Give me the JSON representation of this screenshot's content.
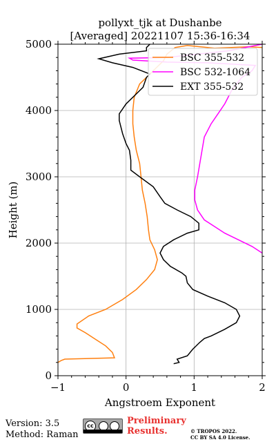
{
  "chart_data": {
    "type": "line",
    "title_line1": "pollyxt_tjk at Dushanbe",
    "title_line2": "[Averaged] 20221107 15:36-16:34",
    "xlabel": "Angstroem Exponent",
    "ylabel": "Height (m)",
    "xlim": [
      -1,
      2
    ],
    "ylim": [
      0,
      5000
    ],
    "xticks": [
      -1,
      0,
      1,
      2
    ],
    "xtick_labels": [
      "−1",
      "0",
      "1",
      "2"
    ],
    "yticks": [
      0,
      1000,
      2000,
      3000,
      4000,
      5000
    ],
    "ytick_labels": [
      "0",
      "1000",
      "2000",
      "3000",
      "4000",
      "5000"
    ],
    "grid": true,
    "legend_position": "top-right",
    "series": [
      {
        "name": "BSC 355-532",
        "color": "#ff7f0e",
        "points": [
          [
            -1.0,
            200
          ],
          [
            -0.95,
            230
          ],
          [
            -0.9,
            250
          ],
          [
            -0.17,
            270
          ],
          [
            -0.2,
            350
          ],
          [
            -0.3,
            450
          ],
          [
            -0.45,
            550
          ],
          [
            -0.6,
            650
          ],
          [
            -0.72,
            720
          ],
          [
            -0.72,
            780
          ],
          [
            -0.55,
            900
          ],
          [
            -0.3,
            1000
          ],
          [
            -0.05,
            1150
          ],
          [
            0.15,
            1300
          ],
          [
            0.3,
            1450
          ],
          [
            0.42,
            1600
          ],
          [
            0.46,
            1750
          ],
          [
            0.42,
            1900
          ],
          [
            0.35,
            2050
          ],
          [
            0.33,
            2200
          ],
          [
            0.31,
            2400
          ],
          [
            0.28,
            2600
          ],
          [
            0.24,
            2800
          ],
          [
            0.22,
            3000
          ],
          [
            0.2,
            3200
          ],
          [
            0.15,
            3400
          ],
          [
            0.12,
            3600
          ],
          [
            0.1,
            3800
          ],
          [
            0.1,
            4000
          ],
          [
            0.12,
            4200
          ],
          [
            0.2,
            4400
          ],
          [
            0.3,
            4500
          ],
          [
            0.4,
            4600
          ],
          [
            0.55,
            4750
          ],
          [
            0.6,
            4850
          ],
          [
            0.72,
            4950
          ],
          [
            0.9,
            4980
          ],
          [
            1.3,
            4940
          ],
          [
            1.8,
            4960
          ],
          [
            2.0,
            4950
          ]
        ]
      },
      {
        "name": "BSC 532-1064",
        "color": "#ff00ff",
        "points": [
          [
            2.0,
            1850
          ],
          [
            1.85,
            1950
          ],
          [
            1.65,
            2050
          ],
          [
            1.45,
            2150
          ],
          [
            1.3,
            2250
          ],
          [
            1.15,
            2350
          ],
          [
            1.05,
            2500
          ],
          [
            1.01,
            2650
          ],
          [
            1.01,
            2800
          ],
          [
            1.05,
            3000
          ],
          [
            1.1,
            3300
          ],
          [
            1.15,
            3600
          ],
          [
            1.25,
            3800
          ],
          [
            1.35,
            3950
          ],
          [
            1.45,
            4100
          ],
          [
            1.55,
            4300
          ],
          [
            1.7,
            4500
          ],
          [
            1.85,
            4600
          ],
          [
            1.9,
            4680
          ],
          [
            1.2,
            4720
          ],
          [
            0.6,
            4730
          ],
          [
            0.1,
            4760
          ],
          [
            0.05,
            4790
          ],
          [
            0.6,
            4800
          ],
          [
            1.5,
            4900
          ],
          [
            2.0,
            5000
          ]
        ]
      },
      {
        "name": "EXT 355-532",
        "color": "#000000",
        "points": [
          [
            0.7,
            180
          ],
          [
            0.78,
            200
          ],
          [
            0.75,
            250
          ],
          [
            0.9,
            300
          ],
          [
            0.98,
            400
          ],
          [
            1.08,
            500
          ],
          [
            1.15,
            560
          ],
          [
            1.25,
            600
          ],
          [
            1.45,
            700
          ],
          [
            1.62,
            800
          ],
          [
            1.67,
            900
          ],
          [
            1.62,
            1000
          ],
          [
            1.45,
            1100
          ],
          [
            1.2,
            1200
          ],
          [
            0.98,
            1300
          ],
          [
            0.9,
            1400
          ],
          [
            0.88,
            1500
          ],
          [
            0.82,
            1550
          ],
          [
            0.65,
            1650
          ],
          [
            0.55,
            1750
          ],
          [
            0.5,
            1850
          ],
          [
            0.55,
            1950
          ],
          [
            0.7,
            2050
          ],
          [
            0.9,
            2150
          ],
          [
            1.07,
            2200
          ],
          [
            1.07,
            2300
          ],
          [
            0.95,
            2400
          ],
          [
            0.75,
            2500
          ],
          [
            0.57,
            2600
          ],
          [
            0.5,
            2700
          ],
          [
            0.4,
            2850
          ],
          [
            0.2,
            3000
          ],
          [
            0.07,
            3100
          ],
          [
            0.07,
            3250
          ],
          [
            0.05,
            3400
          ],
          [
            0.0,
            3500
          ],
          [
            -0.05,
            3650
          ],
          [
            -0.1,
            3850
          ],
          [
            -0.1,
            3950
          ],
          [
            0.0,
            4100
          ],
          [
            0.15,
            4250
          ],
          [
            0.25,
            4350
          ],
          [
            0.3,
            4500
          ],
          [
            0.35,
            4550
          ],
          [
            0.1,
            4650
          ],
          [
            -0.2,
            4720
          ],
          [
            -0.4,
            4780
          ],
          [
            -0.1,
            4850
          ],
          [
            0.3,
            4900
          ],
          [
            0.3,
            4950
          ],
          [
            0.35,
            5000
          ]
        ]
      }
    ]
  },
  "footer": {
    "version": "Version: 3.5",
    "method": "Method: Raman",
    "preliminary_line1": "Preliminary",
    "preliminary_line2": "Results.",
    "copyright_line1": "© TROPOS 2022.",
    "copyright_line2": "CC BY SA 4.0 License.",
    "license_badge_text": "cc"
  }
}
